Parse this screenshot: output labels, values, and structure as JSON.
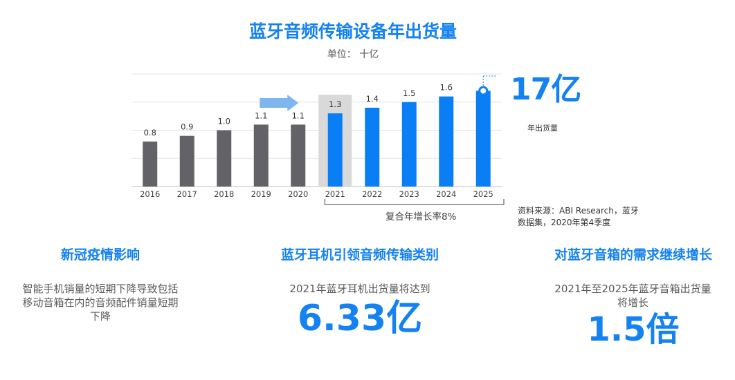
{
  "title": "蓝牙音频传输设备年出货量",
  "unit_label": "单位： 十亿",
  "chart_data": {
    "type": "bar",
    "title": "蓝牙音频传输设备年出货量",
    "ylabel": "单位： 十亿",
    "categories": [
      "2016",
      "2017",
      "2018",
      "2019",
      "2020",
      "2021",
      "2022",
      "2023",
      "2024",
      "2025"
    ],
    "values": [
      0.8,
      0.9,
      1.0,
      1.1,
      1.1,
      1.3,
      1.4,
      1.5,
      1.6,
      1.7
    ],
    "value_labels": [
      "0.8",
      "0.9",
      "1.0",
      "1.1",
      "1.1",
      "1.3",
      "1.4",
      "1.5",
      "1.6",
      ""
    ],
    "ylim": [
      0,
      2.0
    ],
    "grid": true,
    "colors": {
      "historical": "#636367",
      "forecast": "#0a7ff5",
      "highlight_bg": "#d9d9d9",
      "arrow": "#7fb6f0"
    }
  },
  "callout": {
    "value": "17亿",
    "caption": "年出货量"
  },
  "cagr": "复合年增长率8%",
  "source": "资料来源：ABI Research，蓝牙数据集，2020年第4季度",
  "panels": [
    {
      "heading": "新冠疫情影响",
      "body": "智能手机销量的短期下降导致包括移动音箱在内的音频配件销量短期下降",
      "big": ""
    },
    {
      "heading": "蓝牙耳机引领音频传输类别",
      "body": "2021年蓝牙耳机出货量将达到",
      "big": "6.33亿"
    },
    {
      "heading": "对蓝牙音箱的需求继续增长",
      "body": "2021年至2025年蓝牙音箱出货量将增长",
      "big": "1.5倍"
    }
  ]
}
